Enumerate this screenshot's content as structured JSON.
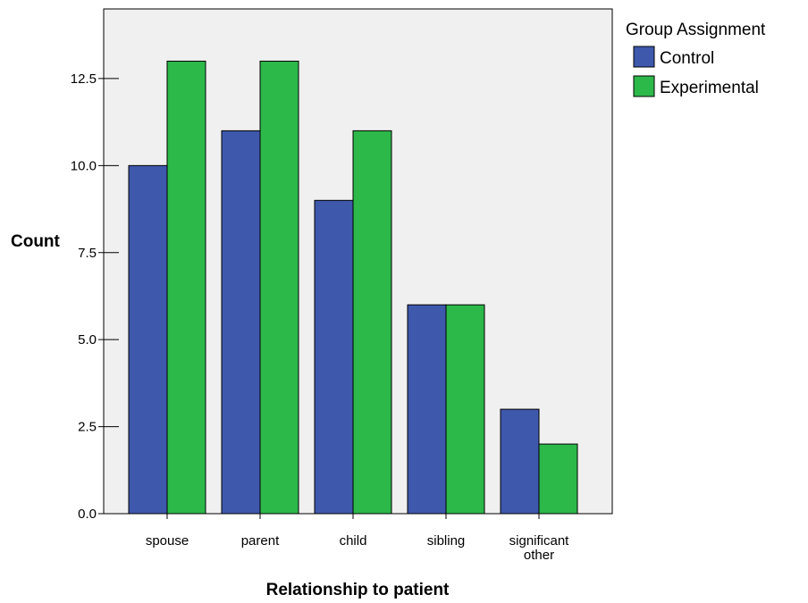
{
  "chart_data": {
    "type": "bar",
    "title": "",
    "xlabel": "Relationship to patient",
    "ylabel": "Count",
    "categories": [
      [
        "spouse"
      ],
      [
        "parent"
      ],
      [
        "child"
      ],
      [
        "sibling"
      ],
      [
        "significant",
        "other"
      ]
    ],
    "series": [
      {
        "name": "Control",
        "color": "#3e58ac",
        "values": [
          10,
          11,
          9,
          6,
          3
        ]
      },
      {
        "name": "Experimental",
        "color": "#2db84a",
        "values": [
          13,
          13,
          11,
          6,
          2
        ]
      }
    ],
    "ylim": [
      0,
      14.5
    ],
    "yticks": [
      0,
      2.5,
      5,
      7.5,
      10,
      12.5
    ],
    "ytick_labels": [
      "0.0",
      "2.5",
      "5.0",
      "7.5",
      "10.0",
      "12.5"
    ],
    "grid": false,
    "plot_background": "#f0f0f0",
    "legend": {
      "title": "Group Assignment",
      "placement": "top-right outside plot"
    }
  }
}
